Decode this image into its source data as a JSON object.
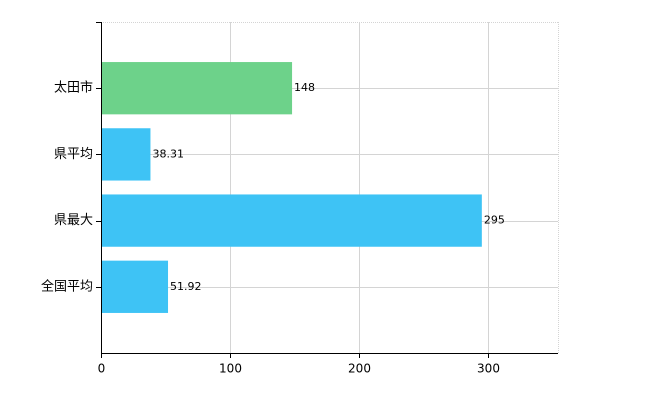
{
  "chart_data": {
    "type": "bar",
    "orientation": "horizontal",
    "categories": [
      "太田市",
      "県平均",
      "県最大",
      "全国平均"
    ],
    "values": [
      148,
      38.31,
      295,
      51.92
    ],
    "colors": [
      "#6dd28a",
      "#3ec3f5",
      "#3ec3f5",
      "#3ec3f5"
    ],
    "xlim": [
      0,
      354
    ],
    "xticks": [
      0,
      100,
      200,
      300
    ],
    "grid": true
  }
}
